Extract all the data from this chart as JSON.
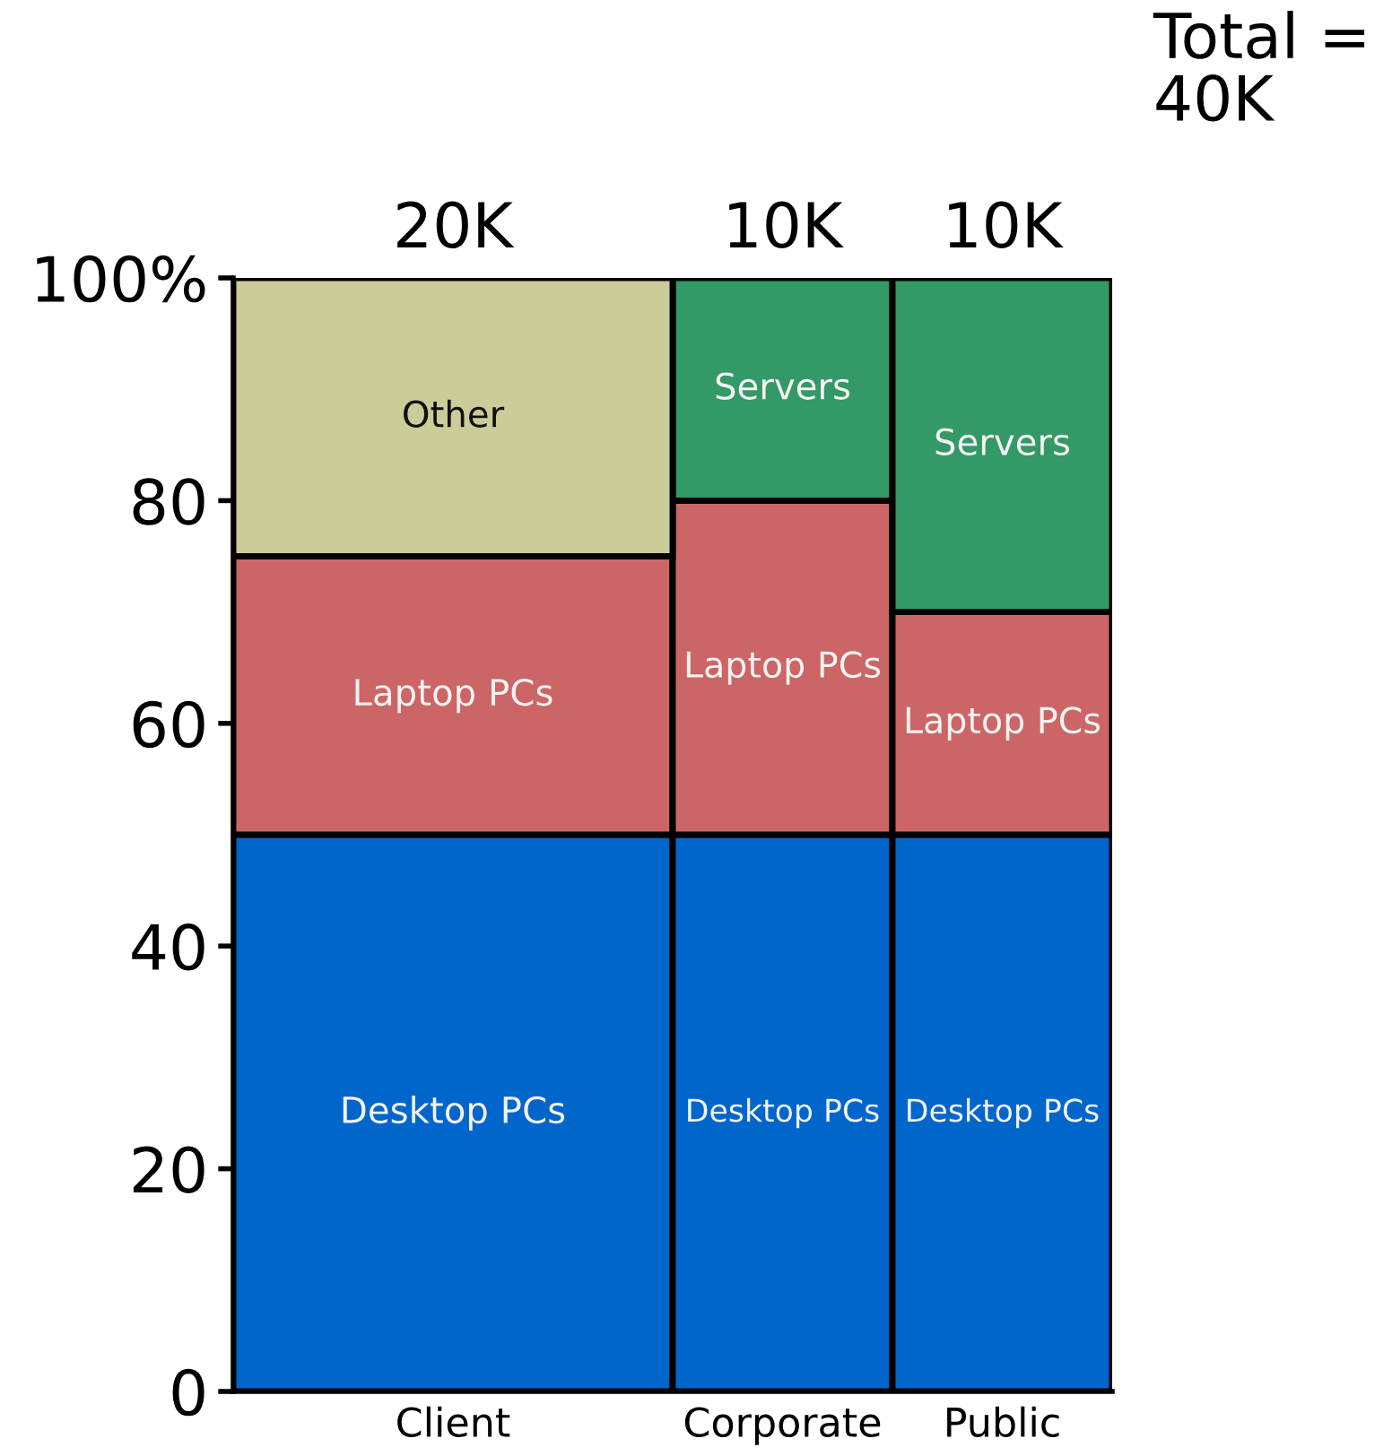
{
  "chart_data": {
    "type": "bar",
    "stacked": true,
    "categories": [
      "Client",
      "Corporate",
      "Public"
    ],
    "series": [
      {
        "name": "Desktop PCs",
        "color": "#0066cc",
        "values": [
          50,
          50,
          50
        ]
      },
      {
        "name": "Laptop PCs",
        "color": "#cc6666",
        "values": [
          25,
          30,
          20
        ]
      },
      {
        "name": "Servers",
        "color": "#339966",
        "values": [
          null,
          20,
          30
        ]
      },
      {
        "name": "Other",
        "color": "#cccc99",
        "values": [
          25,
          null,
          null
        ]
      }
    ],
    "ylim": [
      0,
      100
    ],
    "yticks": [
      0,
      20,
      40,
      60,
      80,
      {
        "value": 100,
        "label": "100%"
      }
    ],
    "grid": false,
    "legend": false,
    "annotations": [
      {
        "text": "20K",
        "x": "Client",
        "y": 100
      },
      {
        "text": "10K",
        "x": "Corporate",
        "y": 100
      },
      {
        "text": "10K",
        "x": "Public",
        "y": 100
      },
      "Total = 40K"
    ]
  }
}
